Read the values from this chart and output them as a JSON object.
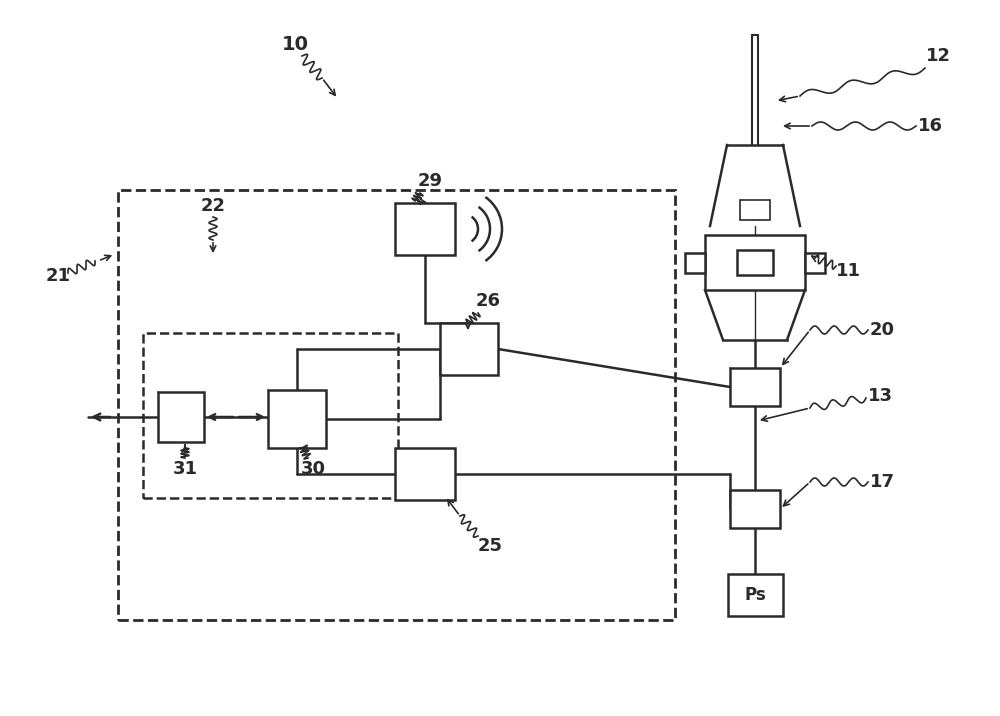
{
  "bg_color": "#ffffff",
  "line_color": "#2a2a2a",
  "fig_width": 10.0,
  "fig_height": 7.16,
  "dpi": 100
}
